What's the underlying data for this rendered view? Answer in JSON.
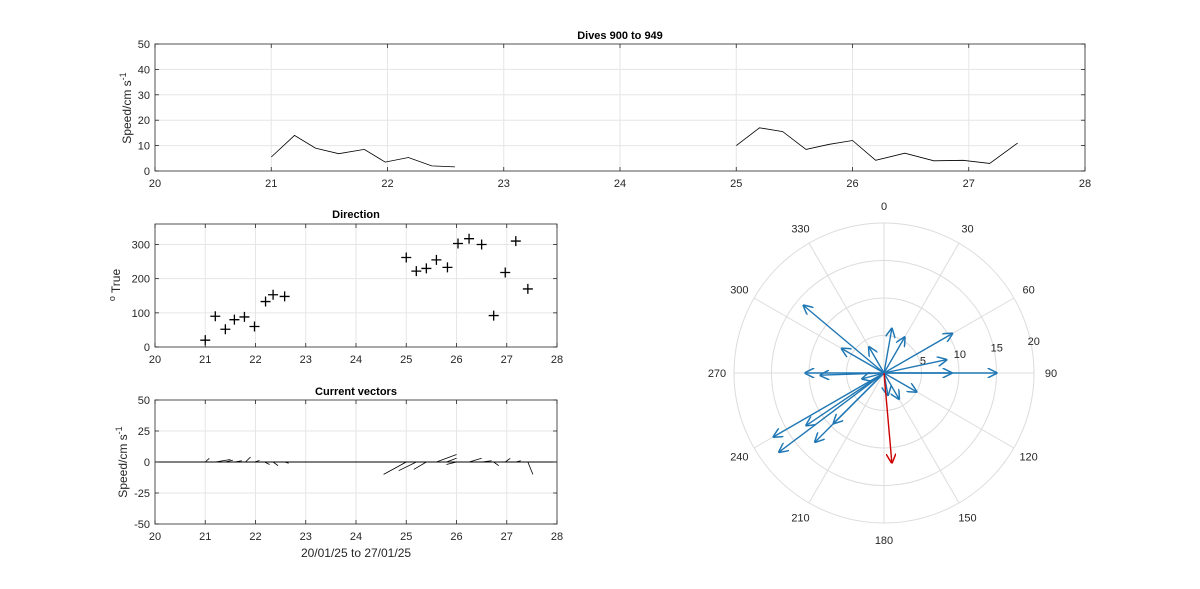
{
  "chart_data": [
    {
      "id": "speed",
      "type": "line",
      "title": "Dives 900 to 949",
      "ylabel": "Speed/cm s",
      "ylabel_sup": "-1",
      "xlim": [
        20,
        28
      ],
      "ylim": [
        0,
        50
      ],
      "xticks": [
        20,
        21,
        22,
        23,
        24,
        25,
        26,
        27,
        28
      ],
      "yticks": [
        0,
        10,
        20,
        30,
        40,
        50
      ],
      "grid": true,
      "line_color": "#000000",
      "series": [
        {
          "x": [
            21.0,
            21.2,
            21.38,
            21.58,
            21.8,
            21.98,
            22.18,
            22.38,
            22.58
          ],
          "y": [
            5.5,
            14,
            9,
            6.8,
            8.5,
            3.5,
            5.3,
            2,
            1.6
          ]
        },
        {
          "x": [
            25.0,
            25.2,
            25.4,
            25.6,
            25.8,
            26.0,
            26.2,
            26.45,
            26.7,
            26.95,
            27.18,
            27.42
          ],
          "y": [
            10,
            17,
            15.5,
            8.5,
            10.5,
            12,
            4.2,
            7,
            4,
            4.2,
            3,
            11
          ]
        }
      ]
    },
    {
      "id": "direction",
      "type": "scatter",
      "title": "Direction",
      "ylabel": "True",
      "ylabel_prefix": "o",
      "xlim": [
        20,
        28
      ],
      "ylim": [
        0,
        360
      ],
      "xticks": [
        20,
        21,
        22,
        23,
        24,
        25,
        26,
        27,
        28
      ],
      "yticks": [
        0,
        100,
        200,
        300
      ],
      "grid": true,
      "marker": "+",
      "x": [
        21.0,
        21.2,
        21.4,
        21.58,
        21.78,
        21.98,
        22.2,
        22.35,
        22.58,
        25.0,
        25.2,
        25.4,
        25.6,
        25.82,
        26.03,
        26.25,
        26.5,
        26.74,
        26.97,
        27.18,
        27.42
      ],
      "y": [
        20,
        90,
        52,
        80,
        88,
        60,
        133,
        153,
        148,
        262,
        222,
        230,
        255,
        233,
        303,
        317,
        300,
        92,
        218,
        310,
        170
      ]
    },
    {
      "id": "vectors",
      "type": "line",
      "title": "Current vectors",
      "ylabel": "Speed/cm s",
      "ylabel_sup": "-1",
      "xlabel": "20/01/25 to 27/01/25",
      "xlim": [
        20,
        28
      ],
      "ylim": [
        -50,
        50
      ],
      "xticks": [
        20,
        21,
        22,
        23,
        24,
        25,
        26,
        27,
        28
      ],
      "yticks": [
        -50,
        -25,
        0,
        25,
        50
      ],
      "grid": true,
      "baseline": 0,
      "sticks": [
        {
          "t": 21.0,
          "u": 0.08,
          "v": 3
        },
        {
          "t": 21.2,
          "u": 0.3,
          "v": 2
        },
        {
          "t": 21.4,
          "u": 0.15,
          "v": 1.5
        },
        {
          "t": 21.58,
          "u": 0.15,
          "v": 1
        },
        {
          "t": 21.8,
          "u": 0.1,
          "v": 4
        },
        {
          "t": 21.98,
          "u": 0.1,
          "v": 1.2
        },
        {
          "t": 22.18,
          "u": 0.1,
          "v": -2
        },
        {
          "t": 22.35,
          "u": 0.1,
          "v": -3
        },
        {
          "t": 22.58,
          "u": 0.08,
          "v": -1
        },
        {
          "t": 25.0,
          "u": -0.45,
          "v": -10
        },
        {
          "t": 25.2,
          "u": -0.35,
          "v": -7
        },
        {
          "t": 25.4,
          "u": -0.25,
          "v": -6
        },
        {
          "t": 25.6,
          "u": 0.4,
          "v": 6
        },
        {
          "t": 25.8,
          "u": 0.2,
          "v": 3
        },
        {
          "t": 26.0,
          "u": -0.2,
          "v": -2
        },
        {
          "t": 26.25,
          "u": 0.25,
          "v": 3
        },
        {
          "t": 26.5,
          "u": 0.2,
          "v": 1
        },
        {
          "t": 26.74,
          "u": 0.1,
          "v": -3
        },
        {
          "t": 26.97,
          "u": 0.1,
          "v": 3
        },
        {
          "t": 27.18,
          "u": 0.1,
          "v": 1
        },
        {
          "t": 27.42,
          "u": 0.1,
          "v": -10
        }
      ]
    },
    {
      "id": "polar",
      "type": "scatter",
      "subtype": "compass",
      "theta_labels": [
        "0",
        "30",
        "60",
        "90",
        "120",
        "150",
        "180",
        "210",
        "240",
        "270",
        "300",
        "330"
      ],
      "theta_direction": "clockwise",
      "theta_zero": "top",
      "r_ticks": [
        "5",
        "10",
        "15",
        "20"
      ],
      "r_max": 20,
      "grid": true,
      "arrow_color": "#1f77b4",
      "highlight_color": "#cc0000",
      "arrows": [
        {
          "dir": 90,
          "speed": 15,
          "highlight": false
        },
        {
          "dir": 90,
          "speed": 9,
          "highlight": false
        },
        {
          "dir": 60,
          "speed": 10.5,
          "highlight": false
        },
        {
          "dir": 30,
          "speed": 5.5,
          "highlight": false
        },
        {
          "dir": 10,
          "speed": 6,
          "highlight": false
        },
        {
          "dir": 78,
          "speed": 8.5,
          "highlight": false
        },
        {
          "dir": 120,
          "speed": 5,
          "highlight": false
        },
        {
          "dir": 150,
          "speed": 4,
          "highlight": false
        },
        {
          "dir": 170,
          "speed": 3,
          "highlight": false
        },
        {
          "dir": 255,
          "speed": 3,
          "highlight": false
        },
        {
          "dir": 310,
          "speed": 14,
          "highlight": false
        },
        {
          "dir": 300,
          "speed": 6.5,
          "highlight": false
        },
        {
          "dir": 330,
          "speed": 4,
          "highlight": false
        },
        {
          "dir": 270,
          "speed": 10.5,
          "highlight": false
        },
        {
          "dir": 268,
          "speed": 8.5,
          "highlight": false
        },
        {
          "dir": 240,
          "speed": 17,
          "highlight": false
        },
        {
          "dir": 233,
          "speed": 17.5,
          "highlight": false
        },
        {
          "dir": 236,
          "speed": 12.5,
          "highlight": false
        },
        {
          "dir": 225,
          "speed": 13,
          "highlight": false
        },
        {
          "dir": 225,
          "speed": 9.5,
          "highlight": false
        },
        {
          "dir": 175,
          "speed": 12,
          "highlight": true
        }
      ]
    }
  ]
}
